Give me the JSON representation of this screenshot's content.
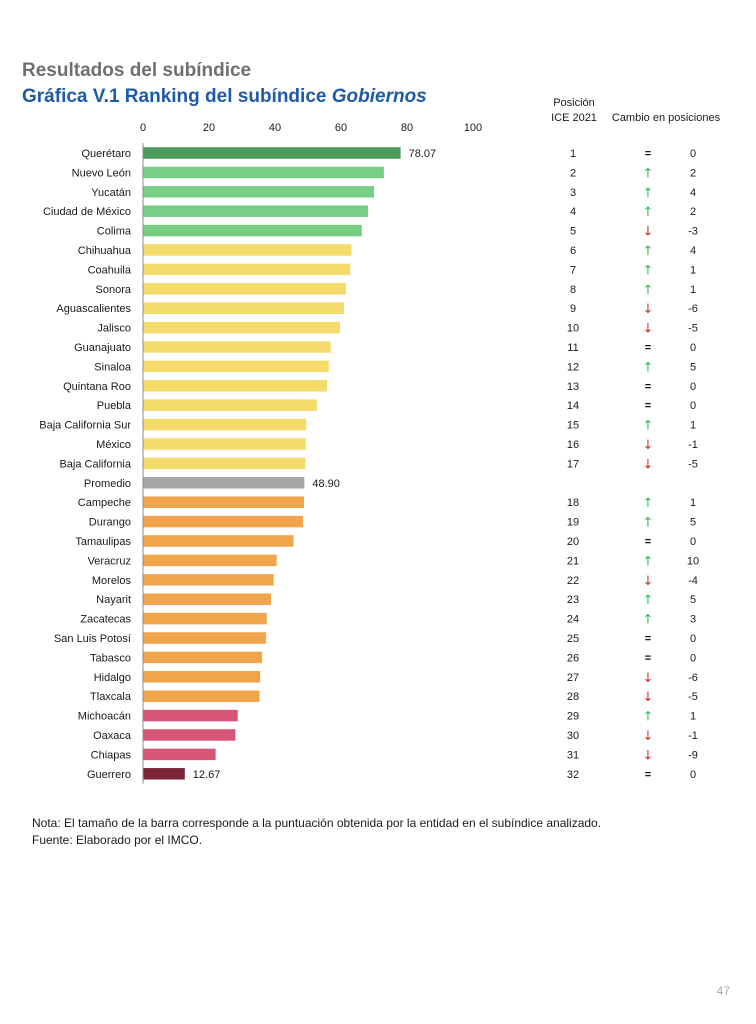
{
  "header": {
    "subtitle": "Resultados del subíndice",
    "title_prefix": "Gráfica V.1 Ranking del subíndice ",
    "title_italic": "Gobiernos"
  },
  "table_headers": {
    "position": "Posición ICE 2021",
    "change": "Cambio en posiciones"
  },
  "colors": {
    "dark_green": "#4a9a5c",
    "green": "#76cf85",
    "yellow": "#f4db6c",
    "gray": "#a6a6a6",
    "orange": "#f0a44b",
    "pink": "#d85476",
    "maroon": "#7a2637",
    "up_arrow": "#2fb85a",
    "down_arrow": "#d62c2c"
  },
  "chart_data": {
    "type": "bar",
    "orientation": "horizontal",
    "xlim": [
      0,
      100
    ],
    "xticks": [
      "0",
      "20",
      "40",
      "60",
      "80",
      "100"
    ],
    "categories": [
      "Querétaro",
      "Nuevo León",
      "Yucatán",
      "Ciudad de México",
      "Colima",
      "Chihuahua",
      "Coahuila",
      "Sonora",
      "Aguascalientes",
      "Jalisco",
      "Guanajuato",
      "Sinaloa",
      "Quintana Roo",
      "Puebla",
      "Baja California Sur",
      "México",
      "Baja California",
      "Promedio",
      "Campeche",
      "Durango",
      "Tamaulipas",
      "Veracruz",
      "Morelos",
      "Nayarit",
      "Zacatecas",
      "San Luis Potosí",
      "Tabasco",
      "Hidalgo",
      "Tlaxcala",
      "Michoacán",
      "Oaxaca",
      "Chiapas",
      "Guerrero"
    ],
    "values": [
      78.07,
      73,
      70,
      68.2,
      66.3,
      63.2,
      62.8,
      61.5,
      60.9,
      59.7,
      56.9,
      56.3,
      55.8,
      52.7,
      49.5,
      49.3,
      49.2,
      48.9,
      48.8,
      48.5,
      45.6,
      40.5,
      39.6,
      38.8,
      37.5,
      37.3,
      36.1,
      35.5,
      35.3,
      28.7,
      28,
      22,
      12.67
    ],
    "color_keys": [
      "dark_green",
      "green",
      "green",
      "green",
      "green",
      "yellow",
      "yellow",
      "yellow",
      "yellow",
      "yellow",
      "yellow",
      "yellow",
      "yellow",
      "yellow",
      "yellow",
      "yellow",
      "yellow",
      "gray",
      "orange",
      "orange",
      "orange",
      "orange",
      "orange",
      "orange",
      "orange",
      "orange",
      "orange",
      "orange",
      "orange",
      "pink",
      "pink",
      "pink",
      "maroon"
    ],
    "data_labels": {
      "0": "78.07",
      "17": "48.90",
      "32": "12.67"
    },
    "positions": [
      "1",
      "2",
      "3",
      "4",
      "5",
      "6",
      "7",
      "8",
      "9",
      "10",
      "11",
      "12",
      "13",
      "14",
      "15",
      "16",
      "17",
      "",
      "18",
      "19",
      "20",
      "21",
      "22",
      "23",
      "24",
      "25",
      "26",
      "27",
      "28",
      "29",
      "30",
      "31",
      "32"
    ],
    "change_symbols": [
      "eq",
      "up",
      "up",
      "up",
      "down",
      "up",
      "up",
      "up",
      "down",
      "down",
      "eq",
      "up",
      "eq",
      "eq",
      "up",
      "down",
      "down",
      "",
      "up",
      "up",
      "eq",
      "up",
      "down",
      "up",
      "up",
      "eq",
      "eq",
      "down",
      "down",
      "up",
      "down",
      "down",
      "eq"
    ],
    "change_values": [
      "0",
      "2",
      "4",
      "2",
      "-3",
      "4",
      "1",
      "1",
      "-6",
      "-5",
      "0",
      "5",
      "0",
      "0",
      "1",
      "-1",
      "-5",
      "",
      "1",
      "5",
      "0",
      "10",
      "-4",
      "5",
      "3",
      "0",
      "0",
      "-6",
      "-5",
      "1",
      "-1",
      "-9",
      "0"
    ]
  },
  "notes": {
    "line1": "Nota: El tamaño de la barra corresponde a la puntuación obtenida por la entidad en el subíndice analizado.",
    "line2": "Fuente: Elaborado por el IMCO."
  },
  "page_number": "47"
}
